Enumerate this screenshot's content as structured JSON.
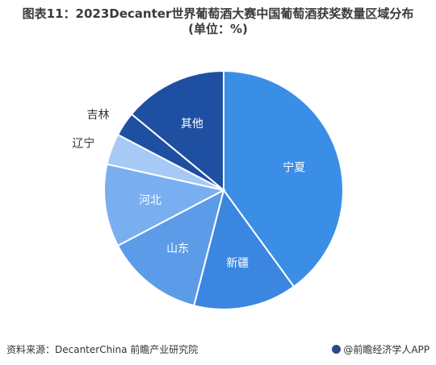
{
  "title": {
    "line1": "图表11：2023Decanter世界葡萄酒大赛中国葡萄酒获奖数量区域分布",
    "line2": "(单位：%)"
  },
  "chart_data": {
    "type": "pie",
    "categories": [
      "宁夏",
      "新疆",
      "山东",
      "河北",
      "辽宁",
      "吉林",
      "其他"
    ],
    "values": [
      40.0,
      14.0,
      13.3,
      11.2,
      4.2,
      3.3,
      14.0
    ],
    "colors": [
      "#3a8ee6",
      "#3b86e0",
      "#5c9be8",
      "#79aff0",
      "#a6c9f5",
      "#1f4fa3",
      "#1f4fa0"
    ]
  },
  "footer": {
    "source": "资料来源：DecanterChina 前瞻产业研究院",
    "brand": "@前瞻经济学人APP"
  }
}
